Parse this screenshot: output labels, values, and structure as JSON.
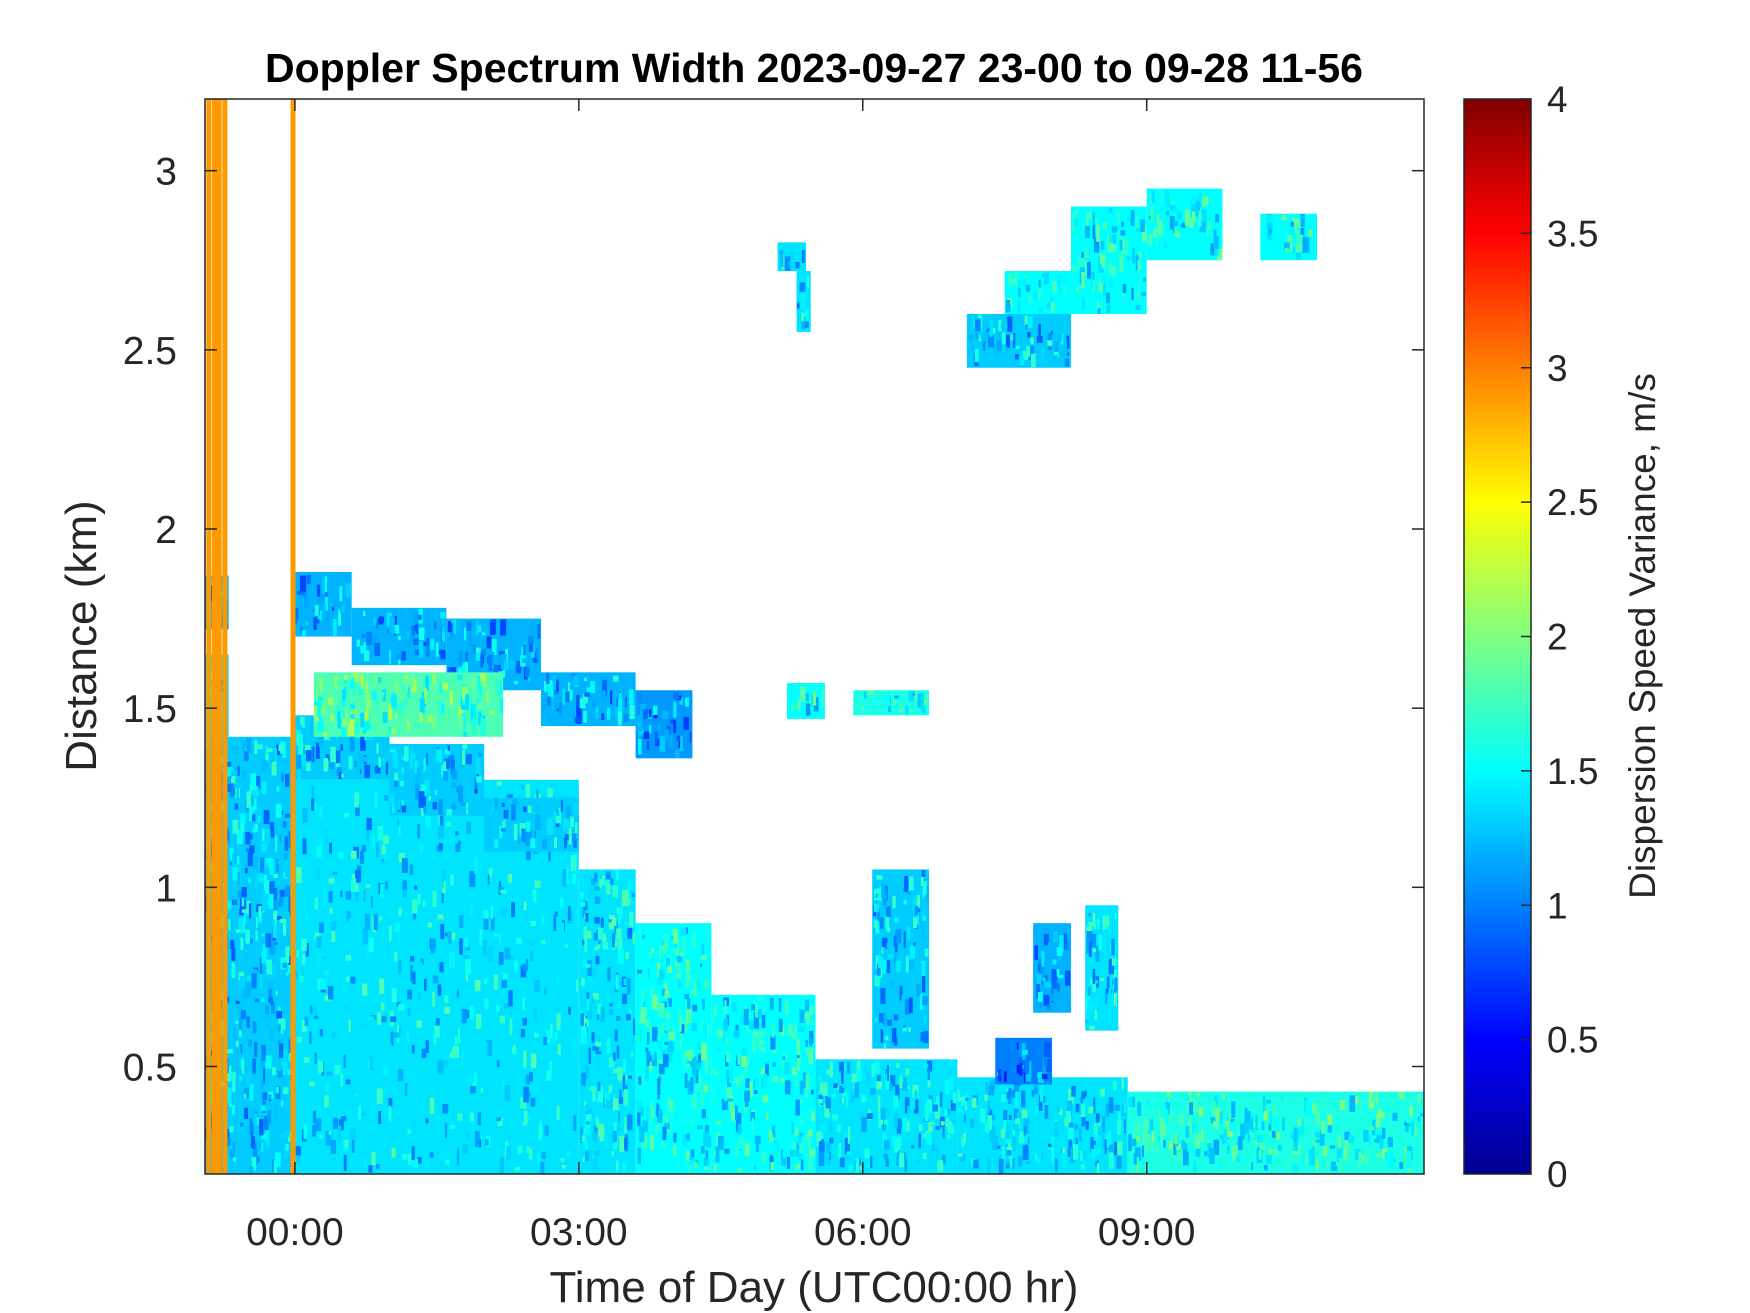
{
  "chart_data": {
    "type": "heatmap",
    "title": "Doppler Spectrum Width 2023-09-27 23-00 to 09-28 11-56",
    "xlabel": "Time of Day (UTC00:00 hr)",
    "ylabel": "Distance (km)",
    "xlim_hours": [
      -0.95,
      11.93
    ],
    "xticks": [
      {
        "value": 0,
        "label": "00:00"
      },
      {
        "value": 3,
        "label": "03:00"
      },
      {
        "value": 6,
        "label": "06:00"
      },
      {
        "value": 9,
        "label": "09:00"
      }
    ],
    "ylim": [
      0.2,
      3.2
    ],
    "yticks": [
      {
        "value": 0.5,
        "label": "0.5"
      },
      {
        "value": 1,
        "label": "1"
      },
      {
        "value": 1.5,
        "label": "1.5"
      },
      {
        "value": 2,
        "label": "2"
      },
      {
        "value": 2.5,
        "label": "2.5"
      },
      {
        "value": 3,
        "label": "3"
      }
    ],
    "colorbar": {
      "label": "Dispersion Speed Variance, m/s",
      "range": [
        0,
        4
      ],
      "colormap": "jet",
      "ticks": [
        {
          "value": 0,
          "label": "0"
        },
        {
          "value": 0.5,
          "label": "0.5"
        },
        {
          "value": 1,
          "label": "1"
        },
        {
          "value": 1.5,
          "label": "1.5"
        },
        {
          "value": 2,
          "label": "2"
        },
        {
          "value": 2.5,
          "label": "2.5"
        },
        {
          "value": 3,
          "label": "3"
        },
        {
          "value": 3.5,
          "label": "3.5"
        },
        {
          "value": 4,
          "label": "4"
        }
      ]
    },
    "high_variance_columns_hours": [
      -0.91,
      -0.85,
      -0.8,
      -0.74,
      -0.02
    ],
    "high_variance_value": 2.9,
    "regions": [
      {
        "t0": -0.95,
        "t1": 0.0,
        "h0": 0.2,
        "h1": 1.42,
        "value": 1.3
      },
      {
        "t0": -0.95,
        "t1": -0.7,
        "h0": 1.42,
        "h1": 1.65,
        "value": 1.4
      },
      {
        "t0": -0.95,
        "t1": -0.7,
        "h0": 1.72,
        "h1": 1.87,
        "value": 1.2
      },
      {
        "t0": 0.0,
        "t1": 3.0,
        "h0": 0.2,
        "h1": 1.3,
        "value": 1.4
      },
      {
        "t0": 0.0,
        "t1": 1.0,
        "h0": 1.3,
        "h1": 1.48,
        "value": 1.3
      },
      {
        "t0": 1.0,
        "t1": 2.0,
        "h0": 1.2,
        "h1": 1.4,
        "value": 1.3
      },
      {
        "t0": 2.0,
        "t1": 3.0,
        "h0": 1.1,
        "h1": 1.25,
        "value": 1.3
      },
      {
        "t0": 3.0,
        "t1": 3.6,
        "h0": 0.2,
        "h1": 1.05,
        "value": 1.4
      },
      {
        "t0": 3.6,
        "t1": 4.4,
        "h0": 0.2,
        "h1": 0.9,
        "value": 1.5
      },
      {
        "t0": 4.4,
        "t1": 5.5,
        "h0": 0.2,
        "h1": 0.7,
        "value": 1.5
      },
      {
        "t0": 5.5,
        "t1": 7.0,
        "h0": 0.2,
        "h1": 0.52,
        "value": 1.4
      },
      {
        "t0": 7.0,
        "t1": 8.8,
        "h0": 0.2,
        "h1": 0.47,
        "value": 1.4
      },
      {
        "t0": 8.8,
        "t1": 11.93,
        "h0": 0.2,
        "h1": 0.43,
        "value": 1.6
      },
      {
        "t0": 0.0,
        "t1": 0.6,
        "h0": 1.7,
        "h1": 1.88,
        "value": 1.2
      },
      {
        "t0": 0.6,
        "t1": 1.6,
        "h0": 1.62,
        "h1": 1.78,
        "value": 1.2
      },
      {
        "t0": 1.6,
        "t1": 2.6,
        "h0": 1.55,
        "h1": 1.75,
        "value": 1.2
      },
      {
        "t0": 2.6,
        "t1": 3.6,
        "h0": 1.45,
        "h1": 1.6,
        "value": 1.2
      },
      {
        "t0": 3.6,
        "t1": 4.2,
        "h0": 1.36,
        "h1": 1.55,
        "value": 1.1
      },
      {
        "t0": 0.2,
        "t1": 2.2,
        "h0": 1.42,
        "h1": 1.6,
        "value": 1.8
      },
      {
        "t0": 5.1,
        "t1": 5.4,
        "h0": 2.72,
        "h1": 2.8,
        "value": 1.4
      },
      {
        "t0": 5.3,
        "t1": 5.45,
        "h0": 2.55,
        "h1": 2.72,
        "value": 1.4
      },
      {
        "t0": 7.1,
        "t1": 8.2,
        "h0": 2.45,
        "h1": 2.6,
        "value": 1.3
      },
      {
        "t0": 7.5,
        "t1": 8.2,
        "h0": 2.6,
        "h1": 2.72,
        "value": 1.5
      },
      {
        "t0": 8.2,
        "t1": 9.0,
        "h0": 2.6,
        "h1": 2.9,
        "value": 1.5
      },
      {
        "t0": 9.0,
        "t1": 9.8,
        "h0": 2.75,
        "h1": 2.95,
        "value": 1.5
      },
      {
        "t0": 10.2,
        "t1": 10.8,
        "h0": 2.75,
        "h1": 2.88,
        "value": 1.5
      },
      {
        "t0": 6.1,
        "t1": 6.7,
        "h0": 0.55,
        "h1": 1.05,
        "value": 1.3
      },
      {
        "t0": 7.8,
        "t1": 8.2,
        "h0": 0.65,
        "h1": 0.9,
        "value": 1.2
      },
      {
        "t0": 8.35,
        "t1": 8.7,
        "h0": 0.6,
        "h1": 0.95,
        "value": 1.4
      },
      {
        "t0": 7.4,
        "t1": 8.0,
        "h0": 0.45,
        "h1": 0.58,
        "value": 1.0
      },
      {
        "t0": 5.9,
        "t1": 6.7,
        "h0": 1.48,
        "h1": 1.55,
        "value": 1.6
      },
      {
        "t0": 5.2,
        "t1": 5.6,
        "h0": 1.47,
        "h1": 1.57,
        "value": 1.5
      }
    ]
  }
}
